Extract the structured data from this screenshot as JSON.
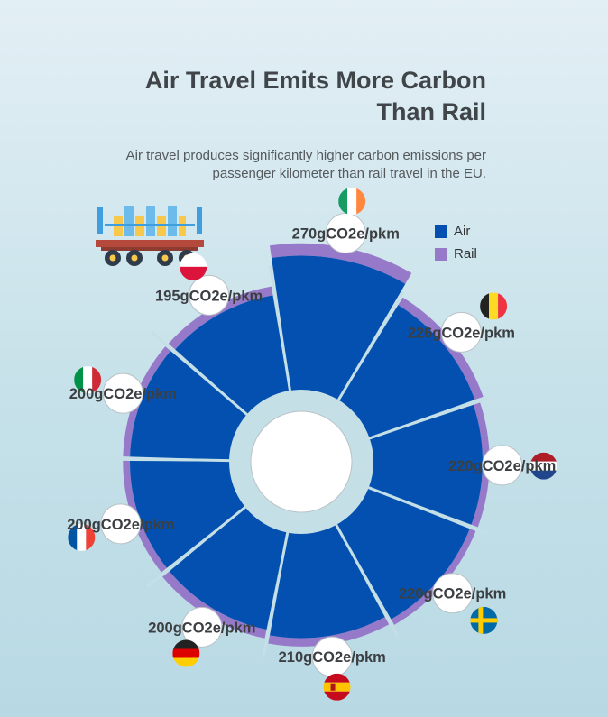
{
  "title": "Air Travel Emits More Carbon Than Rail",
  "subtitle": "Air travel produces significantly higher carbon emissions per passenger kilometer than rail travel in the EU.",
  "legend": {
    "air_label": "Air",
    "rail_label": "Rail"
  },
  "colors": {
    "air": "#0450b0",
    "rail": "#9779c9",
    "ring": "#c5dfe7",
    "title": "#3f4548"
  },
  "icons": {
    "decoration": "train-icon"
  },
  "chart_data": {
    "type": "bar",
    "layout": "radial",
    "categories": [
      "Ireland",
      "Belgium",
      "Netherlands",
      "Sweden",
      "Spain",
      "Germany",
      "France",
      "Italy",
      "Poland"
    ],
    "series": [
      {
        "name": "Air",
        "values": [
          270,
          226,
          220,
          220,
          210,
          200,
          200,
          200,
          195
        ]
      },
      {
        "name": "Rail",
        "values": [
          25,
          18,
          14,
          13,
          17,
          18,
          14,
          14,
          18
        ]
      }
    ],
    "labels": [
      "270gCO2e/pkm",
      "226gCO2e/pkm",
      "220gCO2e/pkm",
      "220gCO2e/pkm",
      "210gCO2e/pkm",
      "200gCO2e/pkm",
      "200gCO2e/pkm",
      "200gCO2e/pkm",
      "195gCO2e/pkm"
    ],
    "flags": [
      "ireland",
      "belgium",
      "netherlands",
      "sweden",
      "spain",
      "germany",
      "france",
      "italy",
      "poland"
    ]
  }
}
